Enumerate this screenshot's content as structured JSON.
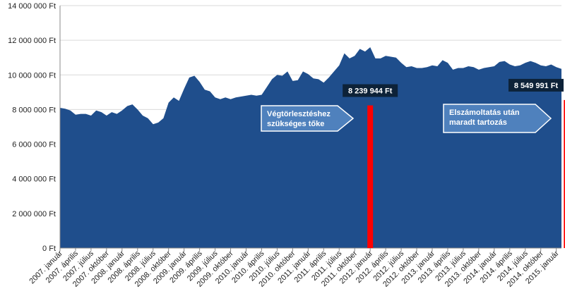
{
  "chart_data": {
    "type": "area",
    "title": "",
    "xlabel": "",
    "ylabel": "",
    "ylim": [
      0,
      14000000
    ],
    "yticks": [
      "0 Ft",
      "2 000 000 Ft",
      "4 000 000 Ft",
      "6 000 000 Ft",
      "8 000 000 Ft",
      "10 000 000 Ft",
      "12 000 000 Ft",
      "14 000 000 Ft"
    ],
    "x_tick_labels": [
      "2007. január",
      "2007. április",
      "2007. július",
      "2007. október",
      "2008. január",
      "2008. április",
      "2008. július",
      "2008. október",
      "2009. január",
      "2009. április",
      "2009. július",
      "2009. október",
      "2010. január",
      "2010. április",
      "2010. július",
      "2010. október",
      "2011. január",
      "2011. április",
      "2011. július",
      "2011. október",
      "2012. január",
      "2012. április",
      "2012. július",
      "2012. október",
      "2013. január",
      "2013. április",
      "2013. július",
      "2013. október",
      "2014. január",
      "2014. április",
      "2014. július",
      "2014. október",
      "2015. január"
    ],
    "grid": true,
    "colors": {
      "area": "#1f4e8c",
      "bar": "#ff0000",
      "callout": "#4f81bd",
      "label_box": "#0d2238",
      "grid": "#d9d9d9"
    },
    "series": [
      {
        "values": [
          8100000,
          8050000,
          7950000,
          7700000,
          7750000,
          7750000,
          7650000,
          7950000,
          7850000,
          7650000,
          7850000,
          7750000,
          7950000,
          8200000,
          8300000,
          8000000,
          7650000,
          7500000,
          7150000,
          7250000,
          7500000,
          8400000,
          8700000,
          8500000,
          9200000,
          9850000,
          9950000,
          9600000,
          9150000,
          9050000,
          8700000,
          8600000,
          8700000,
          8600000,
          8700000,
          8750000,
          8800000,
          8850000,
          8800000,
          8850000,
          9300000,
          9750000,
          10000000,
          9950000,
          10200000,
          9650000,
          9700000,
          10200000,
          10050000,
          9800000,
          9750000,
          9550000,
          9850000,
          10200000,
          10550000,
          11250000,
          10950000,
          11100000,
          11500000,
          11350000,
          11600000,
          10950000,
          10950000,
          11100000,
          11050000,
          11000000,
          10700000,
          10450000,
          10500000,
          10400000,
          10400000,
          10450000,
          10550000,
          10500000,
          10850000,
          10700000,
          10300000,
          10400000,
          10400000,
          10500000,
          10450000,
          10300000,
          10400000,
          10450000,
          10500000,
          10750000,
          10800000,
          10600000,
          10500000,
          10550000,
          10700000,
          10800000,
          10700000,
          10550000,
          10500000,
          10600000,
          10450000,
          10350000
        ]
      },
      {
        "type": "bar",
        "bars": [
          {
            "x_index": 60,
            "value": 8239944,
            "label": "8 239 944 Ft"
          },
          {
            "x_index": 98,
            "value": 8549991,
            "label": "8 549 991 Ft"
          }
        ]
      }
    ],
    "annotations": [
      {
        "lines": [
          "Végtörlesztéshez",
          "szükséges tőke"
        ]
      },
      {
        "lines": [
          "Elszámoltatás után",
          "maradt tartozás"
        ]
      }
    ]
  }
}
